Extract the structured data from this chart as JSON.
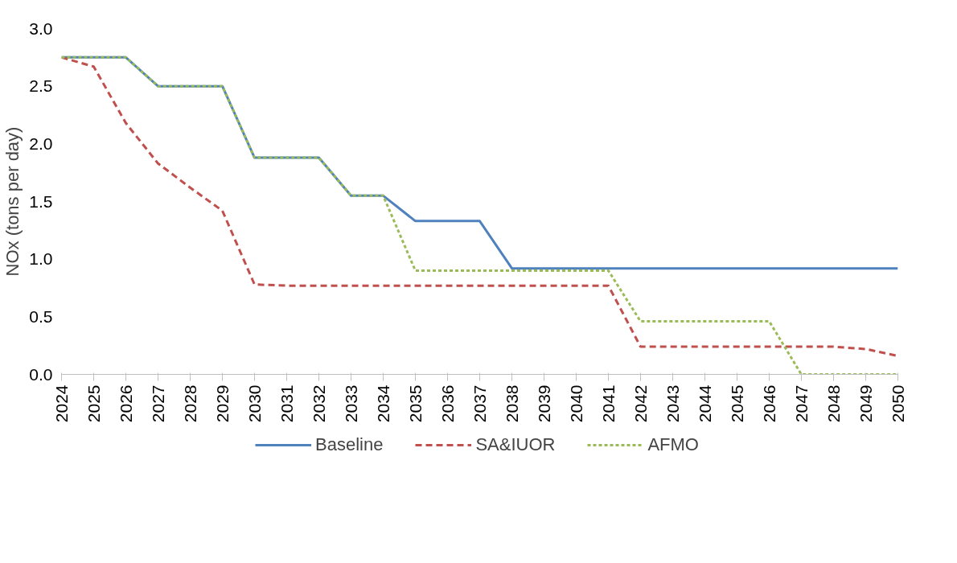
{
  "chart_data": {
    "type": "line",
    "ylabel": "NOx (tons per day)",
    "x": [
      2024,
      2025,
      2026,
      2027,
      2028,
      2029,
      2030,
      2031,
      2032,
      2033,
      2034,
      2035,
      2036,
      2037,
      2038,
      2039,
      2040,
      2041,
      2042,
      2043,
      2044,
      2045,
      2046,
      2047,
      2048,
      2049,
      2050
    ],
    "series": [
      {
        "name": "Baseline",
        "color": "#4f81bd",
        "line_style": "solid",
        "values": [
          2.75,
          2.75,
          2.75,
          2.5,
          2.5,
          2.5,
          1.88,
          1.88,
          1.88,
          1.55,
          1.55,
          1.33,
          1.33,
          1.33,
          0.92,
          0.92,
          0.92,
          0.92,
          0.92,
          0.92,
          0.92,
          0.92,
          0.92,
          0.92,
          0.92,
          0.92,
          0.92
        ]
      },
      {
        "name": "SA&IUOR",
        "color": "#c0504d",
        "line_style": "dashed",
        "values": [
          2.75,
          2.67,
          2.18,
          1.83,
          1.62,
          1.42,
          0.78,
          0.77,
          0.77,
          0.77,
          0.77,
          0.77,
          0.77,
          0.77,
          0.77,
          0.77,
          0.77,
          0.77,
          0.24,
          0.24,
          0.24,
          0.24,
          0.24,
          0.24,
          0.24,
          0.22,
          0.16
        ]
      },
      {
        "name": "AFMO",
        "color": "#9bbb59",
        "line_style": "dotted",
        "values": [
          2.75,
          2.75,
          2.75,
          2.5,
          2.5,
          2.5,
          1.88,
          1.88,
          1.88,
          1.55,
          1.55,
          0.9,
          0.9,
          0.9,
          0.9,
          0.9,
          0.9,
          0.9,
          0.46,
          0.46,
          0.46,
          0.46,
          0.46,
          0,
          0,
          0,
          0
        ]
      }
    ],
    "xlim": [
      2024,
      2050
    ],
    "xticks": [
      2024,
      2025,
      2026,
      2027,
      2028,
      2029,
      2030,
      2031,
      2032,
      2033,
      2034,
      2035,
      2036,
      2037,
      2038,
      2039,
      2040,
      2041,
      2042,
      2043,
      2044,
      2045,
      2046,
      2047,
      2048,
      2049,
      2050
    ],
    "ylim": [
      0,
      3
    ],
    "yticks": [
      {
        "value": 0,
        "label": "0.0"
      },
      {
        "value": 0.5,
        "label": "0.5"
      },
      {
        "value": 1,
        "label": "1.0"
      },
      {
        "value": 1.5,
        "label": "1.5"
      },
      {
        "value": 2,
        "label": "2.0"
      },
      {
        "value": 2.5,
        "label": "2.5"
      },
      {
        "value": 3,
        "label": "3.0"
      }
    ],
    "grid": false,
    "legend": "bottom",
    "marker": "none"
  }
}
